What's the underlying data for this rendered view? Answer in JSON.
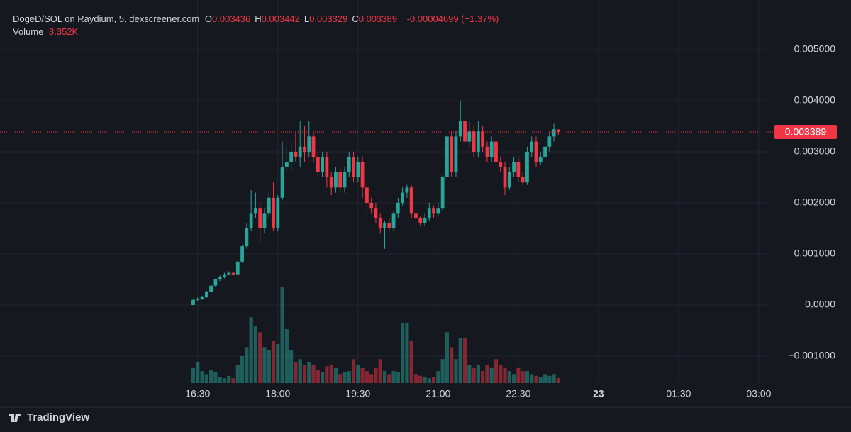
{
  "header": {
    "title": "DogeD/SOL on Raydium, 5, dexscreener.com",
    "ohlc": [
      {
        "label": "O",
        "value": 0.003436
      },
      {
        "label": "H",
        "value": 0.003442
      },
      {
        "label": "L",
        "value": 0.003329
      },
      {
        "label": "C",
        "value": 0.003389
      }
    ],
    "change": "-0.00004699 (−1.37%)",
    "volume_label": "Volume",
    "volume": "8.352K"
  },
  "footer": {
    "brand": "TradingView"
  },
  "chart_data": {
    "type": "candlestick",
    "x": [
      985,
      990,
      995,
      1000,
      1005,
      1010,
      1015,
      1020,
      1025,
      1030,
      1035,
      1040,
      1045,
      1050,
      1055,
      1060,
      1065,
      1070,
      1075,
      1080,
      1085,
      1090,
      1095,
      1100,
      1105,
      1110,
      1115,
      1120,
      1125,
      1130,
      1135,
      1140,
      1145,
      1150,
      1155,
      1160,
      1165,
      1170,
      1175,
      1180,
      1185,
      1190,
      1195,
      1200,
      1205,
      1210,
      1215,
      1220,
      1225,
      1230,
      1235,
      1240,
      1245,
      1250,
      1255,
      1260,
      1265,
      1270,
      1275,
      1280,
      1285,
      1290,
      1295,
      1300,
      1305,
      1310,
      1315,
      1320,
      1325,
      1330,
      1335,
      1340,
      1345,
      1350,
      1355,
      1360,
      1365,
      1370,
      1375,
      1380,
      1385,
      1390,
      1395
    ],
    "open": [
      0,
      0.0001,
      0.00012,
      0.00016,
      0.00026,
      0.00038,
      0.0005,
      0.00055,
      0.0006,
      0.00063,
      0.0006,
      0.00085,
      0.00115,
      0.0015,
      0.0018,
      0.0019,
      0.0015,
      0.0018,
      0.0021,
      0.0015,
      0.0021,
      0.0027,
      0.0028,
      0.003,
      0.0029,
      0.0031,
      0.003,
      0.0033,
      0.0029,
      0.0026,
      0.0029,
      0.0025,
      0.0023,
      0.0026,
      0.0023,
      0.0026,
      0.0029,
      0.0025,
      0.0028,
      0.0023,
      0.002,
      0.0019,
      0.0017,
      0.0015,
      0.0016,
      0.0015,
      0.0018,
      0.002,
      0.0022,
      0.0023,
      0.0018,
      0.0017,
      0.0016,
      0.0017,
      0.0019,
      0.0018,
      0.0019,
      0.0025,
      0.0033,
      0.0026,
      0.0033,
      0.0036,
      0.0032,
      0.0034,
      0.003,
      0.0034,
      0.0031,
      0.0029,
      0.0032,
      0.0028,
      0.0027,
      0.0023,
      0.0026,
      0.0028,
      0.0025,
      0.0024,
      0.003,
      0.0032,
      0.0028,
      0.0029,
      0.0031,
      0.0033,
      0.003436
    ],
    "high": [
      0.00012,
      0.00015,
      0.00018,
      0.00028,
      0.0004,
      0.00052,
      0.00058,
      0.00063,
      0.00066,
      0.00066,
      0.00088,
      0.00118,
      0.0016,
      0.00225,
      0.0022,
      0.002,
      0.0019,
      0.0022,
      0.0024,
      0.00215,
      0.0032,
      0.0031,
      0.0032,
      0.0034,
      0.0036,
      0.0035,
      0.0036,
      0.0034,
      0.003,
      0.003,
      0.003,
      0.0026,
      0.0027,
      0.0027,
      0.0027,
      0.003,
      0.003,
      0.0029,
      0.0029,
      0.0024,
      0.0021,
      0.002,
      0.0018,
      0.00165,
      0.0017,
      0.00185,
      0.0021,
      0.0023,
      0.00235,
      0.00235,
      0.0019,
      0.00175,
      0.0018,
      0.002,
      0.00195,
      0.002,
      0.00255,
      0.00335,
      0.0034,
      0.0034,
      0.004,
      0.0037,
      0.0036,
      0.0035,
      0.0036,
      0.0035,
      0.0032,
      0.0033,
      0.00385,
      0.0029,
      0.0028,
      0.0027,
      0.0029,
      0.0029,
      0.0026,
      0.0031,
      0.0033,
      0.0033,
      0.003,
      0.0032,
      0.0034,
      0.00355,
      0.003442
    ],
    "low": [
      0,
      8e-05,
      0.0001,
      0.00014,
      0.00024,
      0.00036,
      0.00047,
      0.00052,
      0.00058,
      0.00058,
      0.00058,
      0.00082,
      0.0011,
      0.00145,
      0.0017,
      0.0012,
      0.0014,
      0.0017,
      0.00145,
      0.00145,
      0.00205,
      0.0026,
      0.0026,
      0.0028,
      0.0027,
      0.0028,
      0.0029,
      0.0028,
      0.0025,
      0.0025,
      0.0023,
      0.00215,
      0.0022,
      0.0022,
      0.0022,
      0.0025,
      0.0024,
      0.0024,
      0.0021,
      0.0018,
      0.0018,
      0.0016,
      0.0014,
      0.0011,
      0.0014,
      0.00145,
      0.0017,
      0.00195,
      0.0021,
      0.0017,
      0.0016,
      0.00155,
      0.00155,
      0.00165,
      0.0017,
      0.00175,
      0.00185,
      0.00245,
      0.0025,
      0.0025,
      0.0032,
      0.003,
      0.0031,
      0.0029,
      0.0029,
      0.003,
      0.0028,
      0.0028,
      0.0027,
      0.0026,
      0.00215,
      0.00225,
      0.0025,
      0.0024,
      0.00235,
      0.00235,
      0.0029,
      0.0027,
      0.00275,
      0.00285,
      0.003,
      0.0032,
      0.003329
    ],
    "close": [
      0.0001,
      0.00012,
      0.00016,
      0.00026,
      0.00038,
      0.0005,
      0.00055,
      0.0006,
      0.00063,
      0.0006,
      0.00085,
      0.00115,
      0.0015,
      0.0018,
      0.0019,
      0.0015,
      0.0018,
      0.0021,
      0.0015,
      0.0021,
      0.0027,
      0.0028,
      0.003,
      0.0029,
      0.0031,
      0.003,
      0.0033,
      0.0029,
      0.0026,
      0.0029,
      0.0025,
      0.0023,
      0.0026,
      0.0023,
      0.0026,
      0.0029,
      0.0025,
      0.0028,
      0.0023,
      0.002,
      0.0019,
      0.0017,
      0.0015,
      0.0016,
      0.0015,
      0.0018,
      0.002,
      0.0022,
      0.0023,
      0.0018,
      0.0017,
      0.0016,
      0.0017,
      0.0019,
      0.0018,
      0.0019,
      0.0025,
      0.0033,
      0.0026,
      0.0033,
      0.0036,
      0.0032,
      0.0034,
      0.003,
      0.0034,
      0.0031,
      0.0029,
      0.0032,
      0.0028,
      0.0027,
      0.0023,
      0.0026,
      0.0028,
      0.0025,
      0.0024,
      0.003,
      0.0032,
      0.0028,
      0.0029,
      0.0031,
      0.0033,
      0.00344,
      0.003389
    ],
    "volume": [
      25,
      35,
      20,
      15,
      22,
      18,
      10,
      8,
      12,
      8,
      30,
      45,
      60,
      110,
      95,
      85,
      60,
      55,
      70,
      65,
      160,
      90,
      55,
      35,
      40,
      30,
      35,
      30,
      22,
      18,
      28,
      30,
      25,
      15,
      18,
      20,
      40,
      30,
      25,
      20,
      15,
      25,
      40,
      20,
      15,
      20,
      18,
      100,
      100,
      70,
      15,
      12,
      10,
      8,
      10,
      20,
      40,
      85,
      60,
      40,
      75,
      75,
      30,
      25,
      30,
      20,
      30,
      25,
      40,
      30,
      25,
      20,
      15,
      25,
      20,
      20,
      15,
      12,
      10,
      15,
      12,
      15,
      8.352
    ],
    "last_price": 0.003389,
    "up_color": "#26a69a",
    "down_color": "#f23645",
    "xlim": [
      768,
      1632
    ],
    "xticks": [
      {
        "value": 990,
        "label": "16:30"
      },
      {
        "value": 1080,
        "label": "18:00"
      },
      {
        "value": 1170,
        "label": "19:30"
      },
      {
        "value": 1260,
        "label": "21:00"
      },
      {
        "value": 1350,
        "label": "22:30"
      },
      {
        "value": 1440,
        "label": "23"
      },
      {
        "value": 1530,
        "label": "01:30"
      },
      {
        "value": 1620,
        "label": "03:00"
      }
    ],
    "ylim": [
      -0.001528,
      0.005972
    ],
    "yticks": [
      {
        "value": 0.005,
        "label": "0.005000"
      },
      {
        "value": 0.004,
        "label": "0.004000"
      },
      {
        "value": 0.003,
        "label": "0.003000"
      },
      {
        "value": 0.002,
        "label": "0.002000"
      },
      {
        "value": 0.001,
        "label": "0.001000"
      },
      {
        "value": 0,
        "label": "0.0000"
      },
      {
        "value": -0.001,
        "label": "−0.001000"
      }
    ],
    "grid": true
  }
}
